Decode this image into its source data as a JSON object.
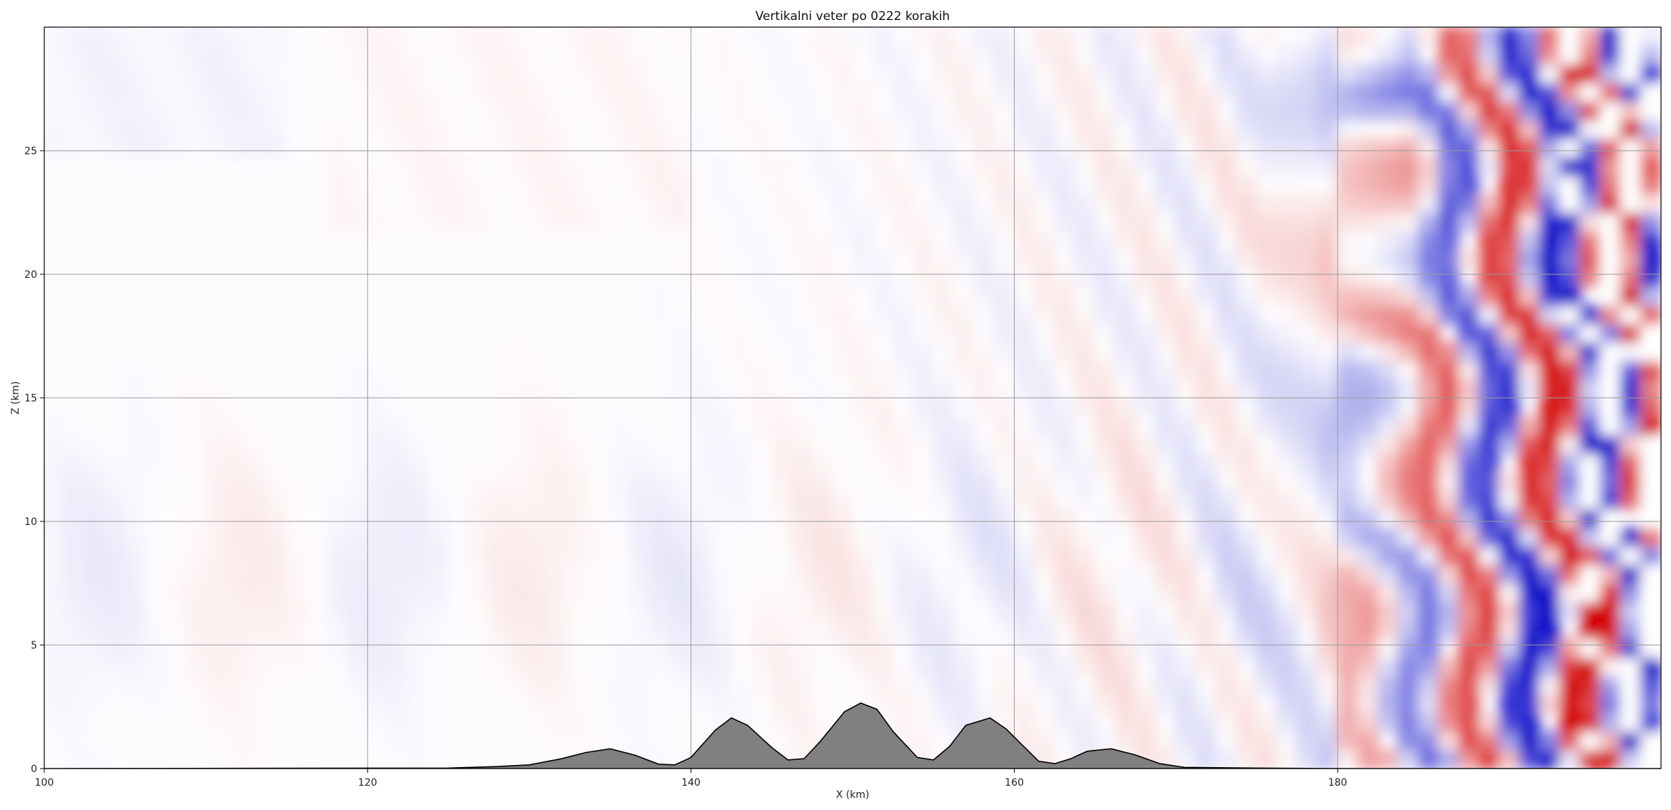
{
  "chart_data": {
    "type": "heatmap",
    "title": "Vertikalni veter po 0222 korakih",
    "xlabel": "X (km)",
    "ylabel": "Z (km)",
    "xlim": [
      100,
      200
    ],
    "ylim": [
      0,
      30
    ],
    "x_ticks": [
      100,
      120,
      140,
      160,
      180
    ],
    "y_ticks": [
      0,
      5,
      10,
      15,
      20,
      25
    ],
    "grid": true,
    "colormap": "bwr",
    "colors": {
      "positive": "#d40000",
      "negative": "#0000c8",
      "zero": "#ffffff",
      "terrain": "#808080",
      "terrain_edge": "#000000"
    },
    "terrain": {
      "x": [
        100,
        125,
        128,
        130,
        132,
        133.5,
        135,
        136.5,
        138,
        139,
        140,
        141.5,
        142.5,
        143.5,
        145,
        146,
        147,
        148,
        149.5,
        150.5,
        151.5,
        152.5,
        154,
        155,
        156,
        157,
        158.5,
        159.5,
        160.5,
        161.5,
        162.5,
        163.5,
        164.5,
        166,
        167.5,
        169,
        170.5,
        172,
        175,
        180,
        200
      ],
      "z": [
        0,
        0.02,
        0.08,
        0.15,
        0.4,
        0.65,
        0.8,
        0.55,
        0.18,
        0.15,
        0.45,
        1.55,
        2.05,
        1.75,
        0.85,
        0.35,
        0.4,
        1.1,
        2.3,
        2.65,
        2.4,
        1.5,
        0.45,
        0.35,
        0.9,
        1.75,
        2.05,
        1.6,
        0.95,
        0.3,
        0.2,
        0.4,
        0.7,
        0.8,
        0.55,
        0.2,
        0.05,
        0.04,
        0.02,
        0,
        0
      ]
    }
  }
}
